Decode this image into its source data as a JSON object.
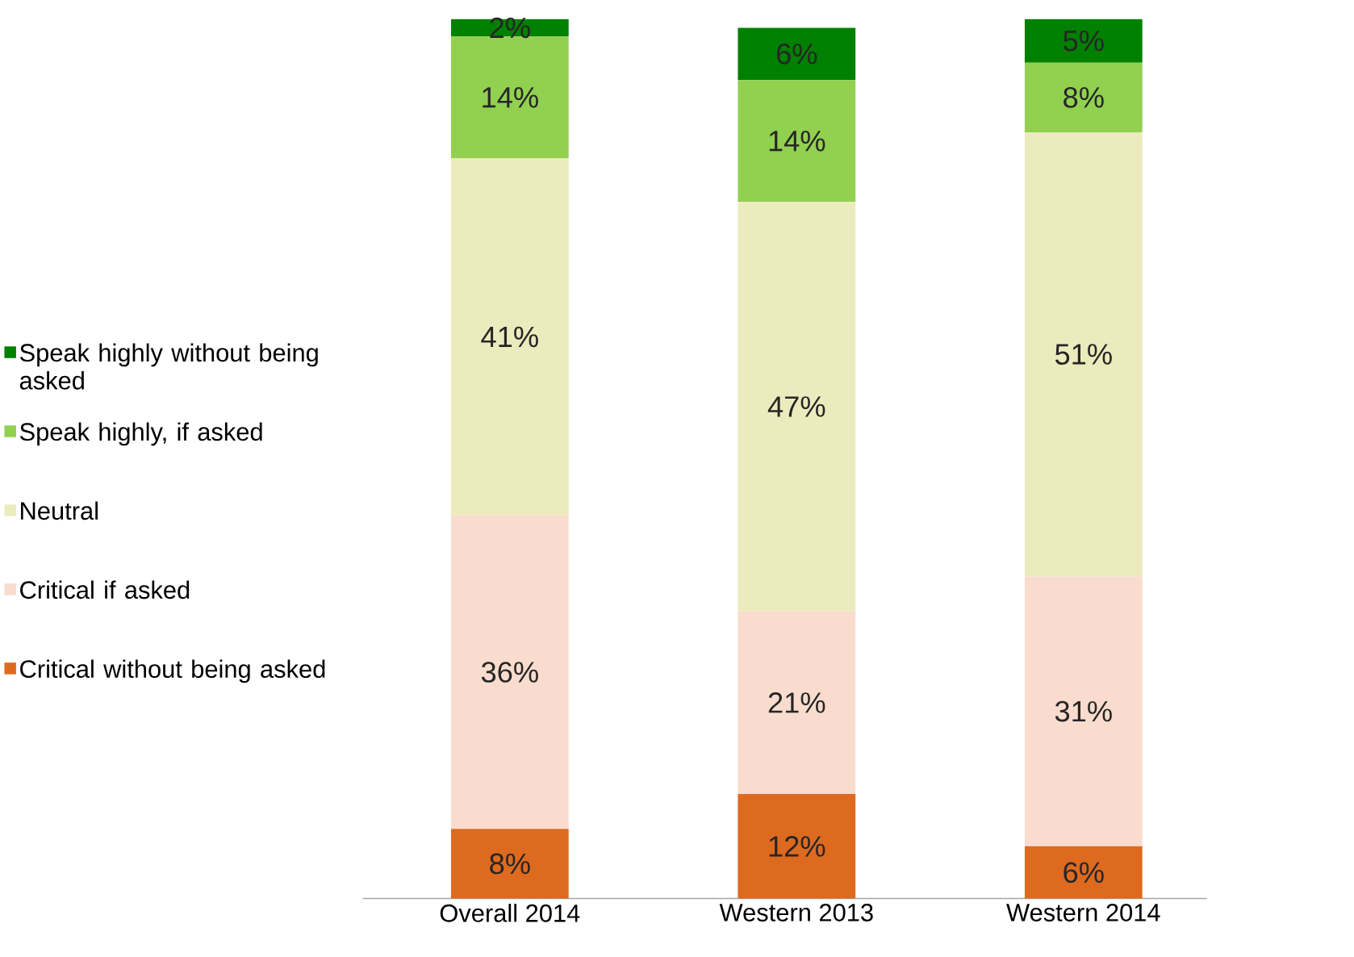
{
  "chart_data": {
    "type": "bar",
    "stacked": true,
    "legend": "left",
    "categories": [
      "Overall 2014",
      "Western 2013",
      "Western 2014"
    ],
    "series": [
      {
        "name": "Critical without being asked",
        "color": "#dd6a1f",
        "values": [
          8,
          12,
          6
        ],
        "value_labels": [
          "8%",
          "12%",
          "6%"
        ]
      },
      {
        "name": "Critical if asked",
        "color": "#f9dccd",
        "values": [
          36,
          21,
          31
        ],
        "value_labels": [
          "36%",
          "21%",
          "31%"
        ]
      },
      {
        "name": "Neutral",
        "color": "#ecebbd",
        "values": [
          41,
          47,
          51
        ],
        "value_labels": [
          "41%",
          "47%",
          "51%"
        ]
      },
      {
        "name": "Speak highly, if asked",
        "color": "#92d050",
        "values": [
          14,
          14,
          8
        ],
        "value_labels": [
          "14%",
          "14%",
          "8%"
        ]
      },
      {
        "name": "Speak highly without being asked",
        "color": "#008000",
        "values": [
          2,
          6,
          5
        ],
        "value_labels": [
          "2%",
          "6%",
          "5%"
        ]
      }
    ]
  }
}
